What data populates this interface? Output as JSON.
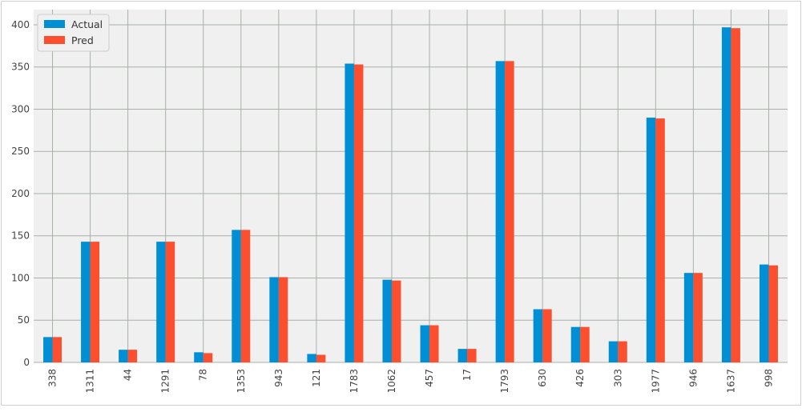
{
  "chart_data": {
    "type": "bar",
    "categories": [
      "338",
      "1311",
      "44",
      "1291",
      "78",
      "1353",
      "943",
      "121",
      "1783",
      "1062",
      "457",
      "17",
      "1793",
      "630",
      "426",
      "303",
      "1977",
      "946",
      "1637",
      "998"
    ],
    "series": [
      {
        "name": "Actual",
        "color": "#008fd5",
        "values": [
          30,
          143,
          15,
          143,
          12,
          157,
          101,
          10,
          354,
          98,
          44,
          16,
          357,
          63,
          42,
          25,
          290,
          106,
          397,
          116
        ]
      },
      {
        "name": "Pred",
        "color": "#fc4f30",
        "values": [
          30,
          143,
          15,
          143,
          11,
          157,
          101,
          9,
          353,
          97,
          44,
          16,
          357,
          63,
          42,
          25,
          289,
          106,
          396,
          115
        ]
      }
    ],
    "yticks": [
      0,
      50,
      100,
      150,
      200,
      250,
      300,
      350,
      400
    ],
    "ylim": [
      0,
      418
    ],
    "grid": true,
    "legend_position": "top-left",
    "title": "",
    "xlabel": "",
    "ylabel": ""
  },
  "style": {
    "background": "#f0f0f0",
    "grid_color": "#a8b0a8"
  }
}
